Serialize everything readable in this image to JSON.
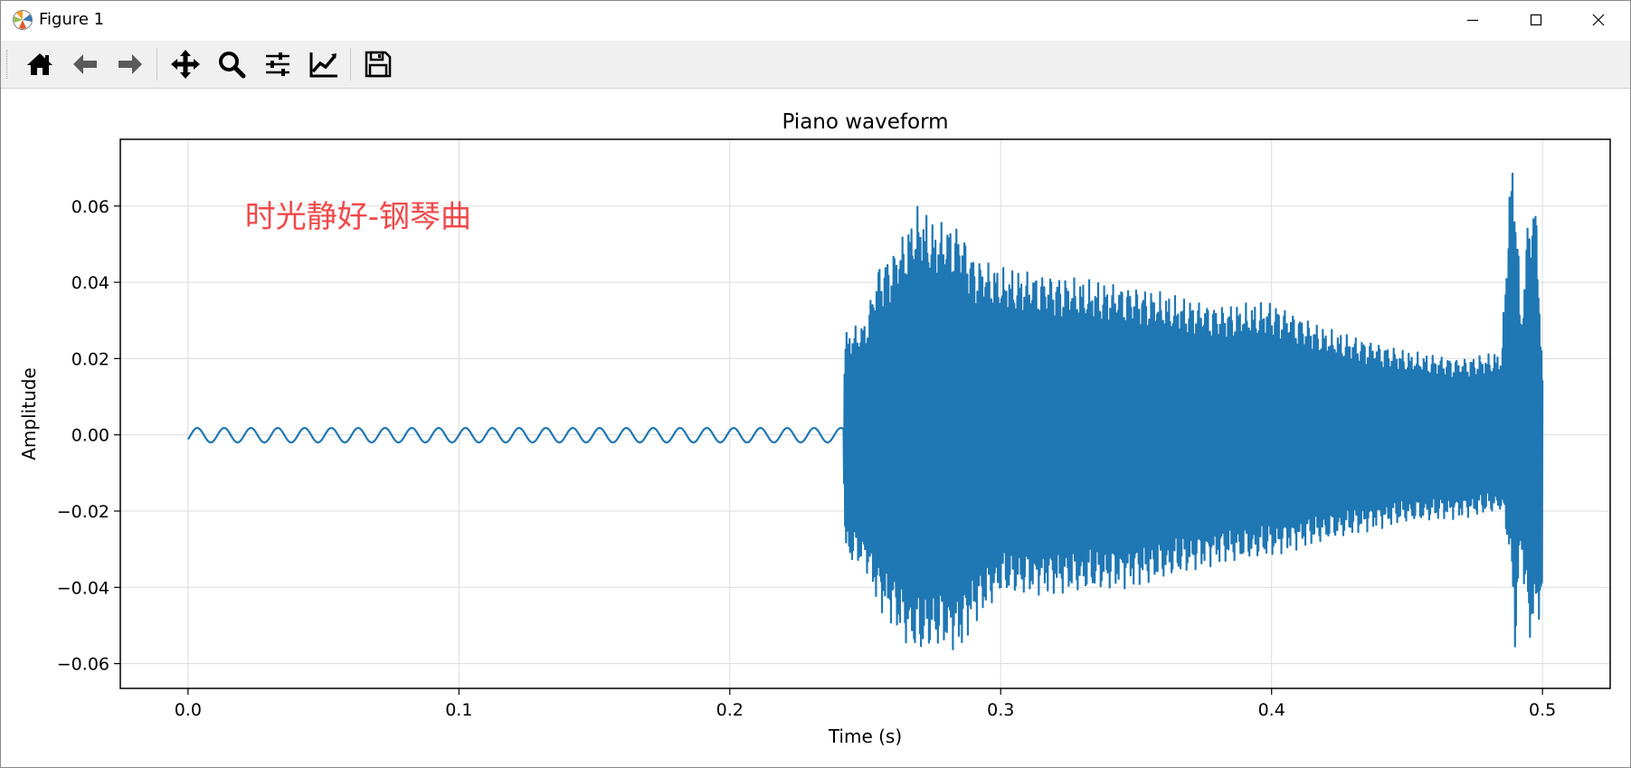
{
  "window": {
    "title": "Figure 1"
  },
  "toolbar": {
    "buttons": [
      {
        "icon": "home-icon"
      },
      {
        "icon": "arrow-left-icon"
      },
      {
        "icon": "arrow-right-icon"
      },
      {
        "icon": "pan-icon"
      },
      {
        "icon": "zoom-icon"
      },
      {
        "icon": "subplots-icon"
      },
      {
        "icon": "edit-axis-icon"
      },
      {
        "icon": "save-icon"
      }
    ]
  },
  "chart_data": {
    "type": "line",
    "title": "Piano waveform",
    "xlabel": "Time (s)",
    "ylabel": "Amplitude",
    "annotation": "时光静好-钢琴曲",
    "annotation_color": "#f0484a",
    "line_color": "#1f77b4",
    "xlim": [
      -0.025,
      0.525
    ],
    "ylim": [
      -0.0665,
      0.0775
    ],
    "xticks": [
      0.0,
      0.1,
      0.2,
      0.3,
      0.4,
      0.5
    ],
    "xtick_labels": [
      "0.0",
      "0.1",
      "0.2",
      "0.3",
      "0.4",
      "0.5"
    ],
    "yticks": [
      -0.06,
      -0.04,
      -0.02,
      0.0,
      0.02,
      0.04,
      0.06
    ],
    "ytick_labels": [
      "−0.06",
      "−0.04",
      "−0.02",
      "0.00",
      "0.02",
      "0.04",
      "0.06"
    ],
    "grid": true,
    "series": [
      {
        "x": [
          0.0,
          0.242,
          0.2425,
          0.25,
          0.255,
          0.26,
          0.265,
          0.27,
          0.275,
          0.28,
          0.285,
          0.29,
          0.3,
          0.32,
          0.35,
          0.38,
          0.4,
          0.42,
          0.45,
          0.47,
          0.485,
          0.488,
          0.49,
          0.492,
          0.495,
          0.498,
          0.5
        ],
        "upper": [
          0.0019,
          0.0019,
          0.027,
          0.03,
          0.045,
          0.048,
          0.054,
          0.061,
          0.056,
          0.056,
          0.055,
          0.047,
          0.044,
          0.042,
          0.039,
          0.034,
          0.035,
          0.028,
          0.022,
          0.02,
          0.022,
          0.07,
          0.072,
          0.03,
          0.061,
          0.06,
          0.015
        ],
        "lower": [
          -0.0019,
          -0.0019,
          -0.033,
          -0.035,
          -0.046,
          -0.05,
          -0.055,
          -0.058,
          -0.056,
          -0.056,
          -0.057,
          -0.05,
          -0.042,
          -0.042,
          -0.04,
          -0.034,
          -0.032,
          -0.028,
          -0.023,
          -0.022,
          -0.02,
          -0.032,
          -0.058,
          -0.03,
          -0.055,
          -0.048,
          -0.049
        ]
      }
    ]
  }
}
